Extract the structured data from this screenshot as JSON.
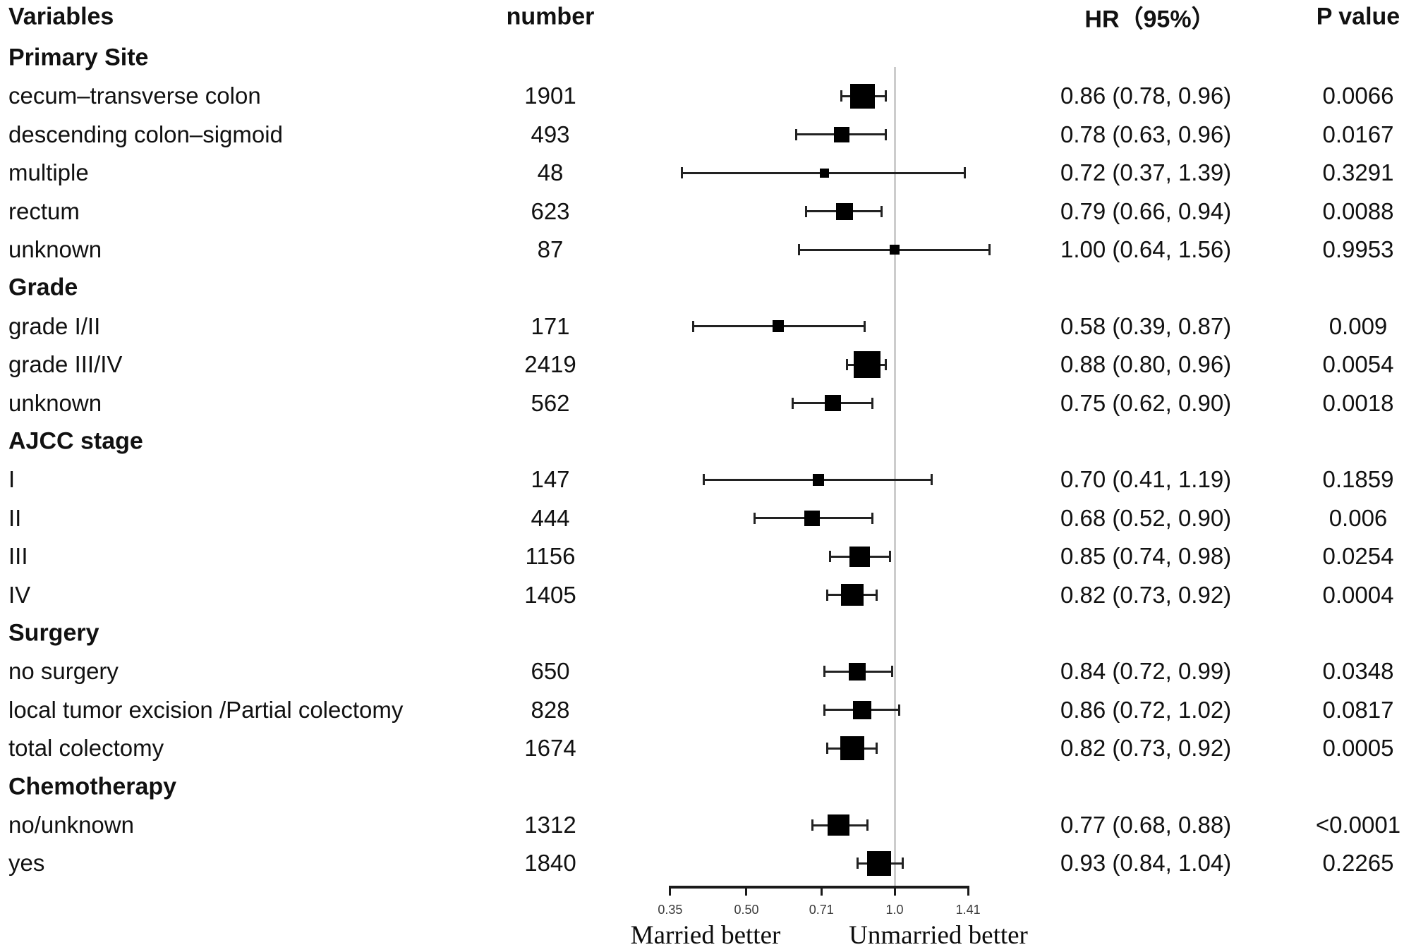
{
  "figure": {
    "columns": {
      "variables": "Variables",
      "number": "number",
      "hr": "HR（95%）",
      "p": "P value"
    }
  },
  "chart_data": {
    "type": "forest",
    "scale": "log",
    "title": "",
    "x_tick_labels": [
      "0.35",
      "0.50",
      "0.71",
      "1.0",
      "1.41"
    ],
    "x_tick_values": [
      0.35,
      0.5,
      0.71,
      1.0,
      1.41
    ],
    "x_range": [
      0.35,
      1.41
    ],
    "reference_line": 1.0,
    "footer_left": "Married better",
    "footer_right": "Unmarried better",
    "columns": [
      "Variables",
      "number",
      "HR（95%）",
      "P value"
    ],
    "rows": [
      {
        "type": "section",
        "label": "Primary Site"
      },
      {
        "type": "item",
        "label": "cecum–transverse colon",
        "n": 1901,
        "hr": 0.86,
        "lo": 0.78,
        "hi": 0.96,
        "hr_text": "0.86 (0.78, 0.96)",
        "p": "0.0066"
      },
      {
        "type": "item",
        "label": "descending colon–sigmoid",
        "n": 493,
        "hr": 0.78,
        "lo": 0.63,
        "hi": 0.96,
        "hr_text": "0.78 (0.63, 0.96)",
        "p": "0.0167"
      },
      {
        "type": "item",
        "label": "multiple",
        "n": 48,
        "hr": 0.72,
        "lo": 0.37,
        "hi": 1.39,
        "hr_text": "0.72 (0.37, 1.39)",
        "p": "0.3291"
      },
      {
        "type": "item",
        "label": "rectum",
        "n": 623,
        "hr": 0.79,
        "lo": 0.66,
        "hi": 0.94,
        "hr_text": "0.79 (0.66, 0.94)",
        "p": "0.0088"
      },
      {
        "type": "item",
        "label": "unknown",
        "n": 87,
        "hr": 1.0,
        "lo": 0.64,
        "hi": 1.56,
        "hr_text": "1.00 (0.64, 1.56)",
        "p": "0.9953"
      },
      {
        "type": "section",
        "label": "Grade"
      },
      {
        "type": "item",
        "label": "grade I/II",
        "n": 171,
        "hr": 0.58,
        "lo": 0.39,
        "hi": 0.87,
        "hr_text": "0.58 (0.39, 0.87)",
        "p": "0.009"
      },
      {
        "type": "item",
        "label": "grade III/IV",
        "n": 2419,
        "hr": 0.88,
        "lo": 0.8,
        "hi": 0.96,
        "hr_text": "0.88 (0.80, 0.96)",
        "p": "0.0054"
      },
      {
        "type": "item",
        "label": "unknown",
        "n": 562,
        "hr": 0.75,
        "lo": 0.62,
        "hi": 0.9,
        "hr_text": "0.75 (0.62, 0.90)",
        "p": "0.0018"
      },
      {
        "type": "section",
        "label": "AJCC stage"
      },
      {
        "type": "item",
        "label": "I",
        "n": 147,
        "hr": 0.7,
        "lo": 0.41,
        "hi": 1.19,
        "hr_text": "0.70 (0.41, 1.19)",
        "p": "0.1859"
      },
      {
        "type": "item",
        "label": "II",
        "n": 444,
        "hr": 0.68,
        "lo": 0.52,
        "hi": 0.9,
        "hr_text": "0.68 (0.52, 0.90)",
        "p": "0.006"
      },
      {
        "type": "item",
        "label": "III",
        "n": 1156,
        "hr": 0.85,
        "lo": 0.74,
        "hi": 0.98,
        "hr_text": "0.85 (0.74, 0.98)",
        "p": "0.0254"
      },
      {
        "type": "item",
        "label": "IV",
        "n": 1405,
        "hr": 0.82,
        "lo": 0.73,
        "hi": 0.92,
        "hr_text": "0.82 (0.73, 0.92)",
        "p": "0.0004"
      },
      {
        "type": "section",
        "label": "Surgery"
      },
      {
        "type": "item",
        "label": "no surgery",
        "n": 650,
        "hr": 0.84,
        "lo": 0.72,
        "hi": 0.99,
        "hr_text": "0.84 (0.72, 0.99)",
        "p": "0.0348"
      },
      {
        "type": "item",
        "label": "local tumor excision /Partial colectomy",
        "n": 828,
        "hr": 0.86,
        "lo": 0.72,
        "hi": 1.02,
        "hr_text": "0.86 (0.72, 1.02)",
        "p": "0.0817"
      },
      {
        "type": "item",
        "label": "total colectomy",
        "n": 1674,
        "hr": 0.82,
        "lo": 0.73,
        "hi": 0.92,
        "hr_text": "0.82 (0.73, 0.92)",
        "p": "0.0005"
      },
      {
        "type": "section",
        "label": "Chemotherapy"
      },
      {
        "type": "item",
        "label": "no/unknown",
        "n": 1312,
        "hr": 0.77,
        "lo": 0.68,
        "hi": 0.88,
        "hr_text": "0.77 (0.68, 0.88)",
        "p": "<0.0001"
      },
      {
        "type": "item",
        "label": "yes",
        "n": 1840,
        "hr": 0.93,
        "lo": 0.84,
        "hi": 1.04,
        "hr_text": "0.93 (0.84, 1.04)",
        "p": "0.2265"
      }
    ]
  }
}
